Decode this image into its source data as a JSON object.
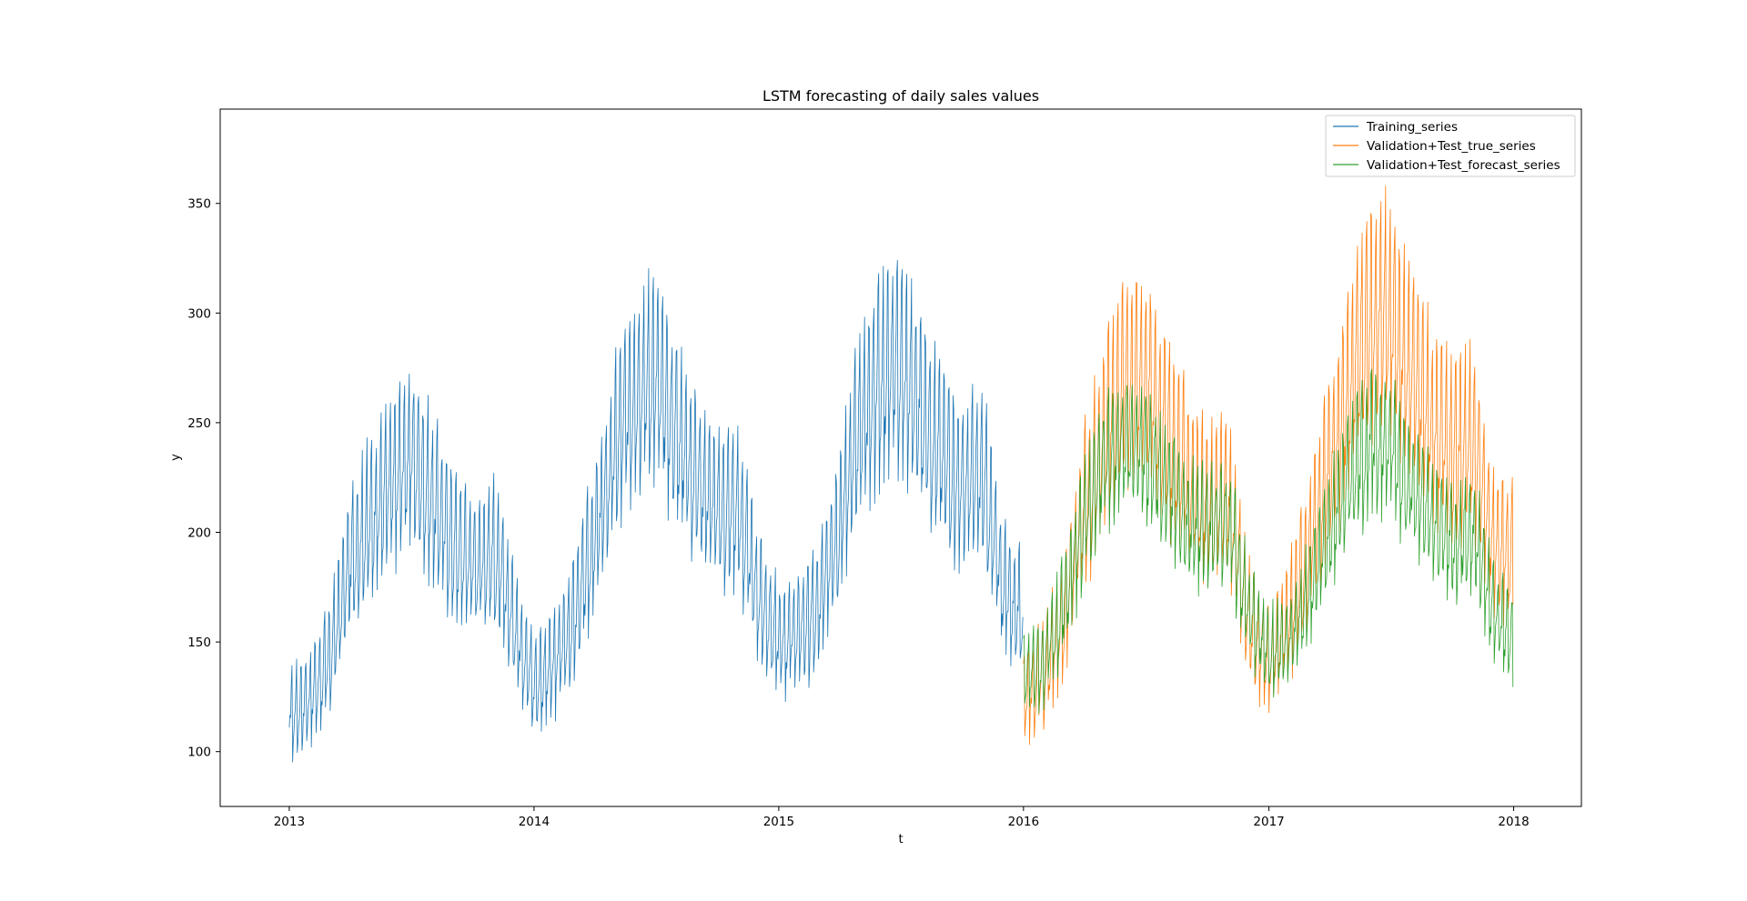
{
  "chart_data": {
    "type": "line",
    "title": "LSTM forecasting of daily sales values",
    "xlabel": "t",
    "ylabel": "y",
    "x_ticks": [
      "2013",
      "2014",
      "2015",
      "2016",
      "2017",
      "2018"
    ],
    "y_ticks": [
      100,
      150,
      200,
      250,
      300,
      350
    ],
    "xlim": [
      "2012-09-20",
      "2018-04-12"
    ],
    "ylim": [
      75,
      393
    ],
    "x_range": [
      "2013-01-01",
      "2017-12-31"
    ],
    "grid": false,
    "legend_position": "top-right",
    "legend": [
      "Training_series",
      "Validation+Test_true_series",
      "Validation+Test_forecast_series"
    ],
    "series": [
      {
        "name": "Training_series",
        "color": "#1f77b4",
        "x_range": [
          "2013-01-01",
          "2015-12-31"
        ],
        "points": [
          [
            "2013-01-01",
            115
          ],
          [
            "2013-02-01",
            125
          ],
          [
            "2013-03-01",
            140
          ],
          [
            "2013-04-01",
            185
          ],
          [
            "2013-05-01",
            205
          ],
          [
            "2013-06-01",
            220
          ],
          [
            "2013-07-01",
            235
          ],
          [
            "2013-08-01",
            215
          ],
          [
            "2013-09-01",
            195
          ],
          [
            "2013-10-01",
            185
          ],
          [
            "2013-11-01",
            190
          ],
          [
            "2013-12-01",
            160
          ],
          [
            "2014-01-01",
            130
          ],
          [
            "2014-02-01",
            140
          ],
          [
            "2014-03-01",
            160
          ],
          [
            "2014-04-01",
            195
          ],
          [
            "2014-05-01",
            235
          ],
          [
            "2014-06-01",
            265
          ],
          [
            "2014-07-01",
            270
          ],
          [
            "2014-08-01",
            245
          ],
          [
            "2014-09-01",
            225
          ],
          [
            "2014-10-01",
            210
          ],
          [
            "2014-11-01",
            210
          ],
          [
            "2014-12-01",
            170
          ],
          [
            "2015-01-01",
            150
          ],
          [
            "2015-02-01",
            155
          ],
          [
            "2015-03-01",
            165
          ],
          [
            "2015-04-01",
            200
          ],
          [
            "2015-05-01",
            245
          ],
          [
            "2015-06-01",
            270
          ],
          [
            "2015-07-01",
            275
          ],
          [
            "2015-08-01",
            255
          ],
          [
            "2015-09-01",
            235
          ],
          [
            "2015-10-01",
            220
          ],
          [
            "2015-11-01",
            225
          ],
          [
            "2015-12-01",
            175
          ],
          [
            "2015-12-31",
            160
          ]
        ]
      },
      {
        "name": "Validation+Test_true_series",
        "color": "#ff7f0e",
        "x_range": [
          "2016-01-01",
          "2017-12-31"
        ],
        "points": [
          [
            "2016-01-01",
            125
          ],
          [
            "2016-02-01",
            135
          ],
          [
            "2016-03-01",
            160
          ],
          [
            "2016-04-01",
            210
          ],
          [
            "2016-05-01",
            245
          ],
          [
            "2016-06-01",
            270
          ],
          [
            "2016-07-01",
            270
          ],
          [
            "2016-08-01",
            245
          ],
          [
            "2016-09-01",
            225
          ],
          [
            "2016-10-01",
            210
          ],
          [
            "2016-11-01",
            215
          ],
          [
            "2016-12-01",
            160
          ],
          [
            "2017-01-01",
            140
          ],
          [
            "2017-02-01",
            160
          ],
          [
            "2017-03-01",
            190
          ],
          [
            "2017-04-01",
            230
          ],
          [
            "2017-05-01",
            265
          ],
          [
            "2017-06-01",
            295
          ],
          [
            "2017-07-01",
            300
          ],
          [
            "2017-08-01",
            270
          ],
          [
            "2017-09-01",
            250
          ],
          [
            "2017-10-01",
            235
          ],
          [
            "2017-11-01",
            240
          ],
          [
            "2017-12-01",
            195
          ],
          [
            "2017-12-31",
            190
          ]
        ]
      },
      {
        "name": "Validation+Test_forecast_series",
        "color": "#2ca02c",
        "x_range": [
          "2016-01-01",
          "2017-12-31"
        ],
        "points": [
          [
            "2016-01-01",
            135
          ],
          [
            "2016-02-01",
            140
          ],
          [
            "2016-03-01",
            165
          ],
          [
            "2016-04-01",
            205
          ],
          [
            "2016-05-01",
            230
          ],
          [
            "2016-06-01",
            240
          ],
          [
            "2016-07-01",
            235
          ],
          [
            "2016-08-01",
            220
          ],
          [
            "2016-09-01",
            205
          ],
          [
            "2016-10-01",
            200
          ],
          [
            "2016-11-01",
            205
          ],
          [
            "2016-12-01",
            165
          ],
          [
            "2017-01-01",
            145
          ],
          [
            "2017-02-01",
            150
          ],
          [
            "2017-03-01",
            170
          ],
          [
            "2017-04-01",
            200
          ],
          [
            "2017-05-01",
            225
          ],
          [
            "2017-06-01",
            240
          ],
          [
            "2017-07-01",
            240
          ],
          [
            "2017-08-01",
            220
          ],
          [
            "2017-09-01",
            205
          ],
          [
            "2017-10-01",
            195
          ],
          [
            "2017-11-01",
            200
          ],
          [
            "2017-12-01",
            165
          ],
          [
            "2017-12-31",
            150
          ]
        ]
      }
    ]
  }
}
